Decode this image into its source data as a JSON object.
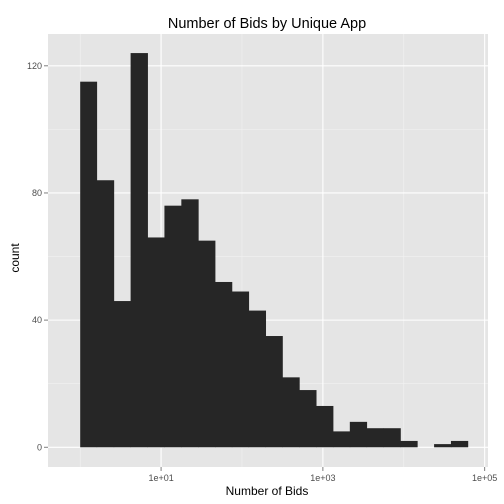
{
  "chart_data": {
    "type": "bar",
    "title": "Number of Bids by Unique App",
    "xlabel": "Number of Bids",
    "ylabel": "count",
    "x_scale": "log10",
    "xlim": [
      0.4,
      110000
    ],
    "ylim": [
      -6.2,
      130
    ],
    "x_ticks": [
      {
        "value": 10,
        "label": "1e+01"
      },
      {
        "value": 1000,
        "label": "1e+03"
      },
      {
        "value": 100000,
        "label": "1e+05"
      }
    ],
    "y_ticks": [
      {
        "value": 0,
        "label": "0"
      },
      {
        "value": 40,
        "label": "40"
      },
      {
        "value": 80,
        "label": "80"
      },
      {
        "value": 120,
        "label": "120"
      }
    ],
    "bins": [
      {
        "x_start": 1.0,
        "x_end": 1.6,
        "count": 115
      },
      {
        "x_start": 1.6,
        "x_end": 2.6,
        "count": 84
      },
      {
        "x_start": 2.6,
        "x_end": 4.2,
        "count": 46
      },
      {
        "x_start": 4.2,
        "x_end": 6.8,
        "count": 124
      },
      {
        "x_start": 6.8,
        "x_end": 11.0,
        "count": 66
      },
      {
        "x_start": 11.0,
        "x_end": 17.8,
        "count": 76
      },
      {
        "x_start": 17.8,
        "x_end": 28.8,
        "count": 78
      },
      {
        "x_start": 28.8,
        "x_end": 46.4,
        "count": 65
      },
      {
        "x_start": 46.4,
        "x_end": 75.0,
        "count": 52
      },
      {
        "x_start": 75.0,
        "x_end": 121,
        "count": 49
      },
      {
        "x_start": 121,
        "x_end": 196,
        "count": 43
      },
      {
        "x_start": 196,
        "x_end": 316,
        "count": 35
      },
      {
        "x_start": 316,
        "x_end": 511,
        "count": 22
      },
      {
        "x_start": 511,
        "x_end": 825,
        "count": 18
      },
      {
        "x_start": 825,
        "x_end": 1334,
        "count": 13
      },
      {
        "x_start": 1334,
        "x_end": 2154,
        "count": 5
      },
      {
        "x_start": 2154,
        "x_end": 3481,
        "count": 8
      },
      {
        "x_start": 3481,
        "x_end": 5623,
        "count": 6
      },
      {
        "x_start": 5623,
        "x_end": 9085,
        "count": 6
      },
      {
        "x_start": 9085,
        "x_end": 14678,
        "count": 2
      },
      {
        "x_start": 14678,
        "x_end": 23714,
        "count": 0
      },
      {
        "x_start": 23714,
        "x_end": 38312,
        "count": 1
      },
      {
        "x_start": 38312,
        "x_end": 61897,
        "count": 2
      }
    ],
    "grid": true,
    "legend": "none",
    "colors": {
      "panel_background": "#e5e5e5",
      "grid_major": "#ffffff",
      "grid_minor": "#f2f2f2",
      "bar_fill": "#262626"
    }
  }
}
